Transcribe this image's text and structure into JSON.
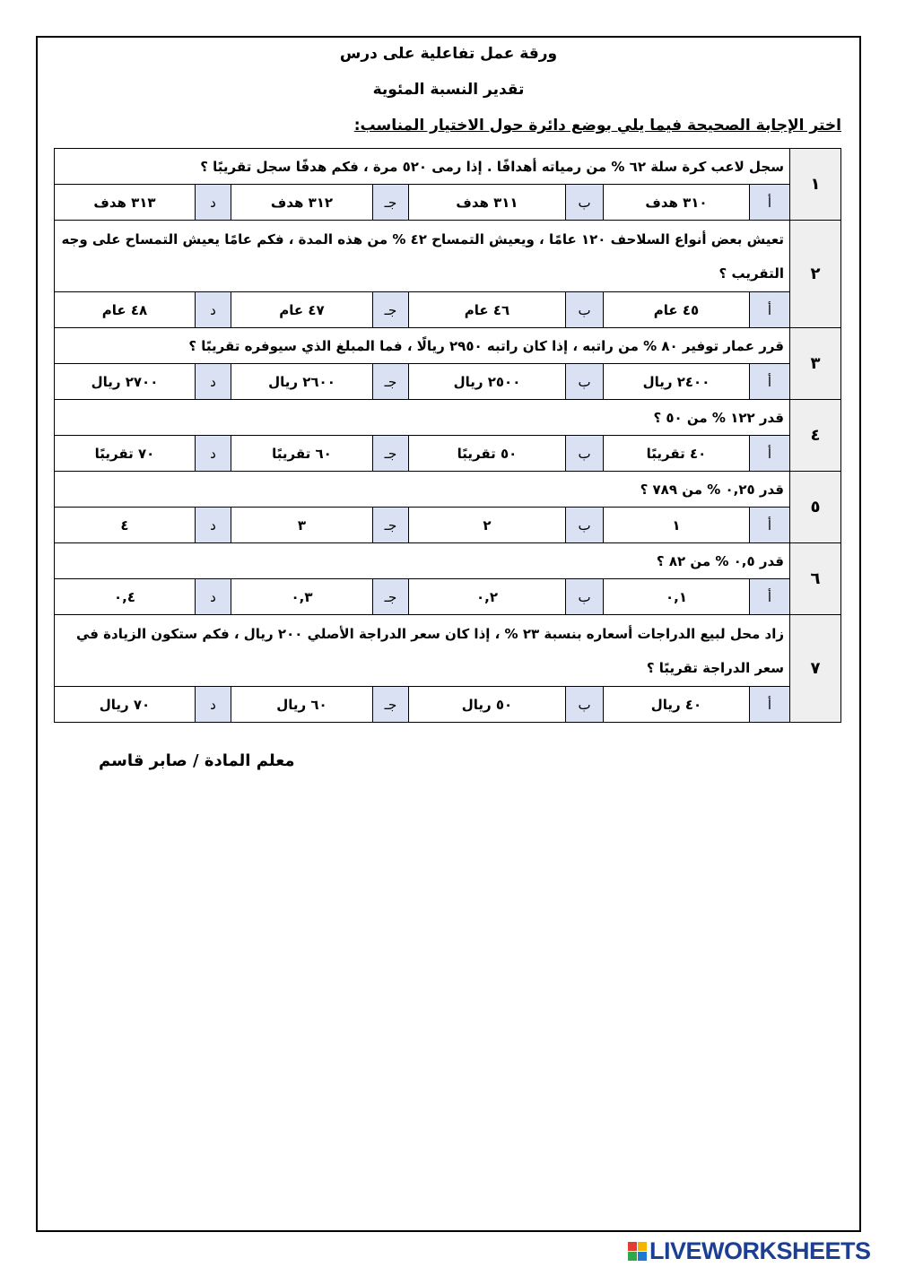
{
  "header": {
    "title": "ورقة عمل تفاعلية على درس",
    "subtitle": "تقدير النسبة المئوية",
    "instruction": "اختر الإجابة الصحيحة فيما يلي بوضع دائرة حول الاختيار المناسب:"
  },
  "option_letters": [
    "أ",
    "ب",
    "جـ",
    "د"
  ],
  "questions": [
    {
      "num": "١",
      "text": "سجل لاعب كرة سلة ٦٢ % من رمياته أهدافًا . إذا رمى ٥٢٠ مرة ، فكم هدفًا سجل تقريبًا ؟",
      "options": [
        "٣١٠ هدف",
        "٣١١ هدف",
        "٣١٢ هدف",
        "٣١٣ هدف"
      ]
    },
    {
      "num": "٢",
      "text": "تعيش بعض أنواع السلاحف ١٢٠ عامًا ، ويعيش التمساح ٤٢ % من هذه المدة ، فكم عامًا يعيش التمساح على وجه التقريب ؟",
      "options": [
        "٤٥ عام",
        "٤٦ عام",
        "٤٧ عام",
        "٤٨ عام"
      ]
    },
    {
      "num": "٣",
      "text": "قرر عمار توفير ٨٠ % من راتبه ، إذا كان راتبه ٢٩٥٠ ريالًا ، فما المبلغ الذي سيوفره تقريبًا ؟",
      "options": [
        "٢٤٠٠ ريال",
        "٢٥٠٠ ريال",
        "٢٦٠٠ ريال",
        "٢٧٠٠ ريال"
      ]
    },
    {
      "num": "٤",
      "text": "قدر ١٢٢ % من ٥٠ ؟",
      "options": [
        "٤٠ تقريبًا",
        "٥٠ تقريبًا",
        "٦٠ تقريبًا",
        "٧٠ تقريبًا"
      ]
    },
    {
      "num": "٥",
      "text": "قدر ٠,٢٥ % من ٧٨٩ ؟",
      "options": [
        "١",
        "٢",
        "٣",
        "٤"
      ]
    },
    {
      "num": "٦",
      "text": "قدر ٠,٥ % من ٨٢ ؟",
      "options": [
        "٠,١",
        "٠,٢",
        "٠,٣",
        "٠,٤"
      ]
    },
    {
      "num": "٧",
      "text": "زاد محل لبيع الدراجات أسعاره بنسبة ٢٣ % ، إذا كان سعر الدراجة الأصلي ٢٠٠ ريال ، فكم ستكون الزيادة في سعر الدراجة تقريبًا ؟",
      "options": [
        "٤٠ ريال",
        "٥٠ ريال",
        "٦٠ ريال",
        "٧٠ ريال"
      ]
    }
  ],
  "footer": {
    "signature": "معلم المادة / صابر قاسم",
    "logo": "LIVEWORKSHEETS"
  },
  "colors": {
    "letter_cell": "#d9e1f2",
    "number_cell": "#efefef",
    "logo": "#1c3f94"
  }
}
